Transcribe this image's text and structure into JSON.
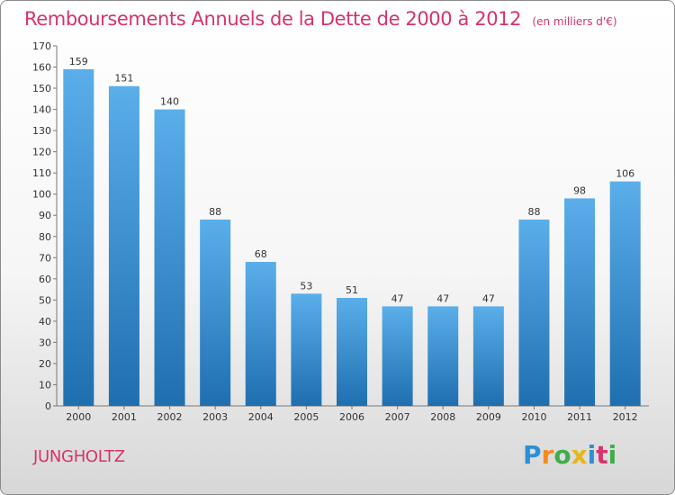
{
  "title": "Remboursements Annuels de la Dette de 2000 à 2012",
  "unit": "(en milliers d'€)",
  "commune": "JUNGHOLTZ",
  "logo": {
    "letters": [
      "P",
      "r",
      "o",
      "x",
      "i",
      "t",
      "i"
    ]
  },
  "colors": {
    "title": "#d6336c",
    "bar_top": "#5aaeea",
    "bar_bottom": "#1f6fb0"
  },
  "chart_data": {
    "type": "bar",
    "title": "Remboursements Annuels de la Dette de 2000 à 2012",
    "categories": [
      "2000",
      "2001",
      "2002",
      "2003",
      "2004",
      "2005",
      "2006",
      "2007",
      "2008",
      "2009",
      "2010",
      "2011",
      "2012"
    ],
    "values": [
      159,
      151,
      140,
      88,
      68,
      53,
      51,
      47,
      47,
      47,
      88,
      98,
      106
    ],
    "ylim": [
      0,
      170
    ],
    "yticks": [
      0,
      10,
      20,
      30,
      40,
      50,
      60,
      70,
      80,
      90,
      100,
      110,
      120,
      130,
      140,
      150,
      160,
      170
    ],
    "grid": false,
    "legend": "none"
  }
}
